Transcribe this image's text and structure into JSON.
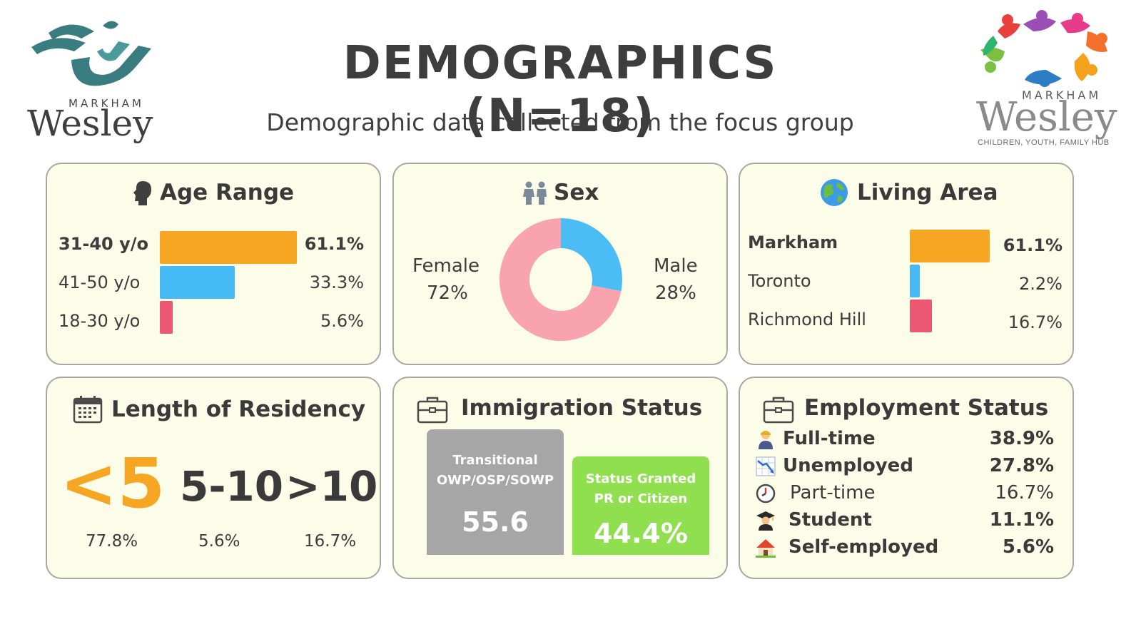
{
  "header": {
    "title": "DEMOGRAPHICS (N=18)",
    "subtitle": "Demographic data collected from the focus group"
  },
  "logo_left": {
    "small": "MARKHAM",
    "big": "Wesley",
    "colors": [
      "#3a7d80",
      "#4a9a9c"
    ]
  },
  "logo_right": {
    "small": "MARKHAM",
    "big": "Wesley",
    "tagline": "CHILDREN, YOUTH, FAMILY HUB"
  },
  "colors": {
    "orange": "#f6a623",
    "blue": "#45baf5",
    "pink": "#ec5872",
    "female": "#f8a3ad",
    "male": "#4cbdf4",
    "gray": "#a6a6a6",
    "green": "#8fdf4f",
    "card_bg": "#fcfde8"
  },
  "age": {
    "title": "Age Range",
    "icon": "head-silhouette-icon",
    "rows": [
      {
        "label": "31-40 y/o",
        "value": "61.1%",
        "color": "#f6a623"
      },
      {
        "label": "41-50 y/o",
        "value": "33.3%",
        "color": "#45baf5"
      },
      {
        "label": "18-30 y/o",
        "value": "5.6%",
        "color": "#ec5872"
      }
    ]
  },
  "sex": {
    "title": "Sex",
    "icon": "people-icon",
    "female_label": "Female",
    "female_value": "72%",
    "male_label": "Male",
    "male_value": "28%"
  },
  "living": {
    "title": "Living Area",
    "icon": "globe-icon",
    "rows": [
      {
        "label": "Markham",
        "value": "61.1%",
        "color": "#f6a623"
      },
      {
        "label": "Toronto",
        "value": "2.2%",
        "color": "#45baf5"
      },
      {
        "label": "Richmond Hill",
        "value": "16.7%",
        "color": "#ec5872"
      }
    ]
  },
  "residency": {
    "title": "Length of Residency",
    "icon": "calendar-icon",
    "groups": [
      {
        "label": "<5",
        "value": "77.8%"
      },
      {
        "label": "5-10",
        "value": "5.6%"
      },
      {
        "label": ">10",
        "value": "16.7%"
      }
    ]
  },
  "immigration": {
    "title": "Immigration Status",
    "icon": "briefcase-icon",
    "transitional": {
      "line1": "Transitional",
      "line2": "OWP/OSP/SOWP",
      "value": "55.6"
    },
    "granted": {
      "line1": "Status Granted",
      "line2": "PR or Citizen",
      "value": "44.4%"
    }
  },
  "employment": {
    "title": "Employment Status",
    "icon": "briefcase-icon",
    "rows": [
      {
        "label": "Full-time",
        "value": "38.9%",
        "icon": "worker-icon"
      },
      {
        "label": "Unemployed",
        "value": "27.8%",
        "icon": "declining-chart-icon"
      },
      {
        "label": "Part-time",
        "value": "16.7%",
        "icon": "clock-icon"
      },
      {
        "label": "Student",
        "value": "11.1%",
        "icon": "graduate-icon"
      },
      {
        "label": "Self-employed",
        "value": "5.6%",
        "icon": "house-icon"
      }
    ]
  },
  "chart_data": [
    {
      "type": "bar",
      "title": "Age Range",
      "categories": [
        "31-40 y/o",
        "41-50 y/o",
        "18-30 y/o"
      ],
      "values": [
        61.1,
        33.3,
        5.6
      ]
    },
    {
      "type": "pie",
      "title": "Sex",
      "categories": [
        "Female",
        "Male"
      ],
      "values": [
        72,
        28
      ]
    },
    {
      "type": "bar",
      "title": "Living Area",
      "categories": [
        "Markham",
        "Toronto",
        "Richmond Hill"
      ],
      "values": [
        61.1,
        2.2,
        16.7
      ]
    },
    {
      "type": "table",
      "title": "Length of Residency",
      "categories": [
        "<5",
        "5-10",
        ">10"
      ],
      "values": [
        77.8,
        5.6,
        16.7
      ]
    },
    {
      "type": "bar",
      "title": "Immigration Status",
      "categories": [
        "Transitional OWP/OSP/SOWP",
        "Status Granted PR or Citizen"
      ],
      "values": [
        55.6,
        44.4
      ]
    },
    {
      "type": "table",
      "title": "Employment Status",
      "categories": [
        "Full-time",
        "Unemployed",
        "Part-time",
        "Student",
        "Self-employed"
      ],
      "values": [
        38.9,
        27.8,
        16.7,
        11.1,
        5.6
      ]
    }
  ]
}
